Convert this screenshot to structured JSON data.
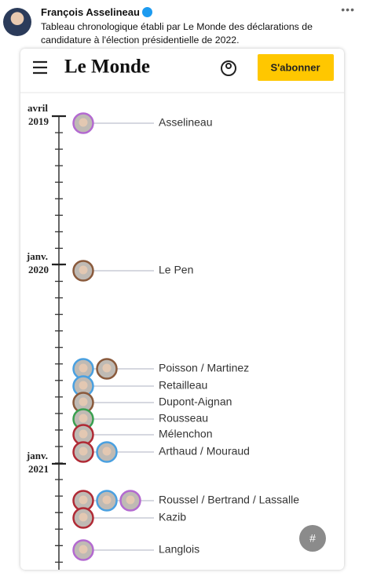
{
  "tweet": {
    "author": "François Asselineau",
    "text": "Tableau chronologique établi par Le Monde des déclarations de candidature à l'élection présidentielle de 2022."
  },
  "header": {
    "logo": "Le Monde",
    "subscribe": "S'abonner"
  },
  "timeline": {
    "periods": [
      {
        "month": "avril",
        "year": "2019"
      },
      {
        "month": "janv.",
        "year": "2020"
      },
      {
        "month": "janv.",
        "year": "2021"
      }
    ],
    "entries": [
      "Asselineau",
      "Le Pen",
      "Poisson / Martinez",
      "Retailleau",
      "Dupont-Aignan",
      "Rousseau",
      "Mélenchon",
      "Arthaud / Mouraud",
      "Roussel / Bertrand / Lassalle",
      "Kazib",
      "Langlois"
    ]
  },
  "badge": "#"
}
